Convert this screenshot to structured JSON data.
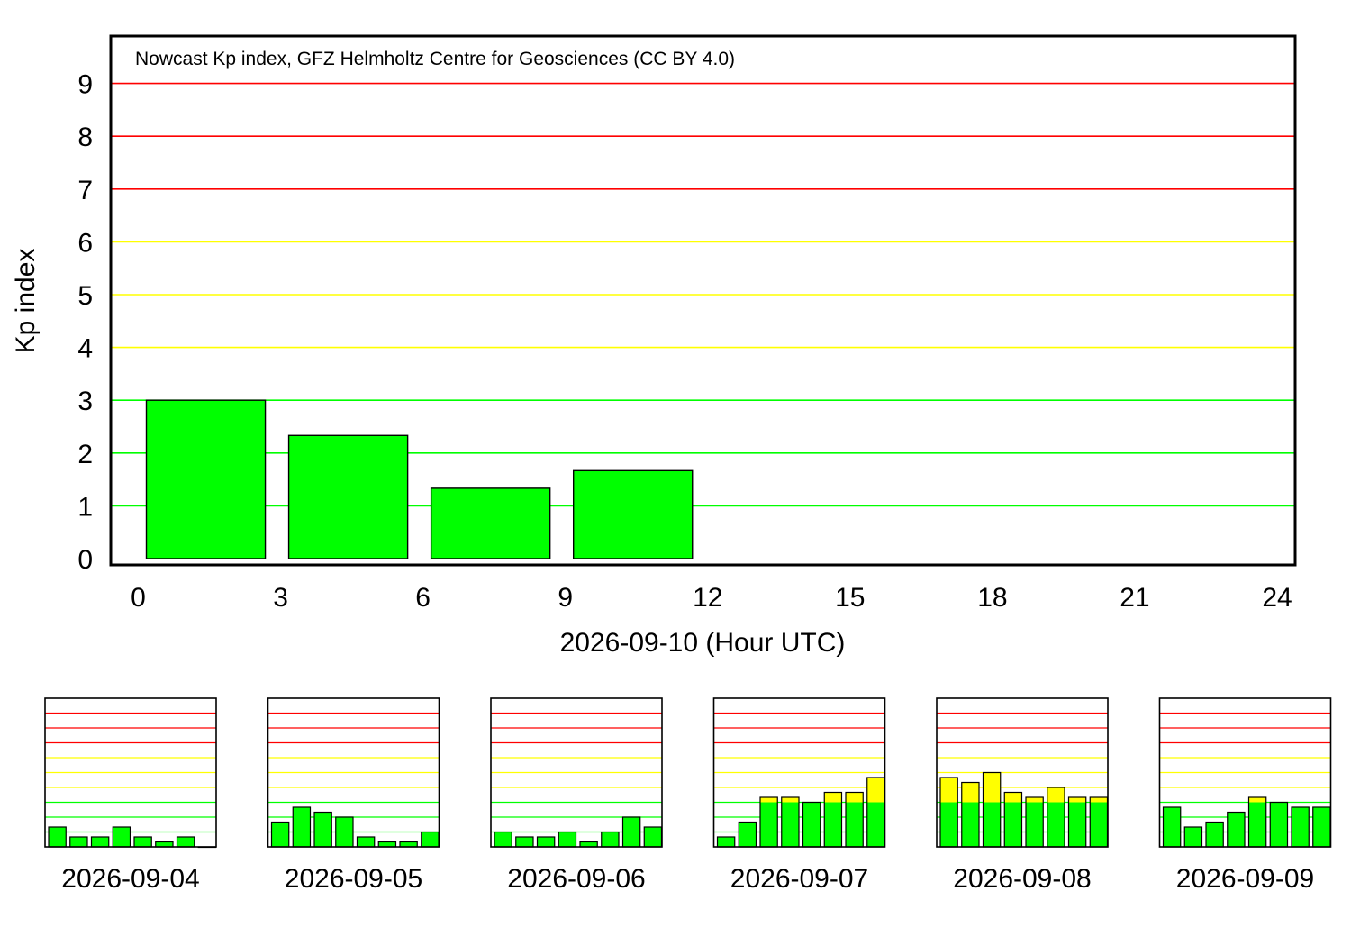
{
  "colors": {
    "bar_green": "#00ff00",
    "bar_yellow": "#ffff00",
    "grid_green": "#00ff00",
    "grid_yellow": "#ffff00",
    "grid_red": "#ff0000",
    "frame": "#000000"
  },
  "chart_data": [
    {
      "type": "bar",
      "annotation": "Nowcast Kp index, GFZ Helmholtz Centre for Geosciences (CC BY 4.0)",
      "ylabel": "Kp index",
      "xlabel": "2026-09-10 (Hour UTC)",
      "xlim": [
        0,
        24
      ],
      "ylim": [
        0,
        9
      ],
      "yticks": [
        0,
        1,
        2,
        3,
        4,
        5,
        6,
        7,
        8,
        9
      ],
      "xticks": [
        0,
        3,
        6,
        9,
        12,
        15,
        18,
        21,
        24
      ],
      "grid": "horizontal lines at each Kp level; green 1-3, yellow 4-6, red 7-9",
      "bars": [
        {
          "start_hour": 0,
          "end_hour": 3,
          "value": 3.0
        },
        {
          "start_hour": 3,
          "end_hour": 6,
          "value": 2.333
        },
        {
          "start_hour": 6,
          "end_hour": 9,
          "value": 1.333
        },
        {
          "start_hour": 9,
          "end_hour": 12,
          "value": 1.667
        }
      ]
    },
    {
      "type": "bar",
      "xlabel": "2026-09-04",
      "ylim": [
        0,
        9
      ],
      "values": [
        1.333,
        0.667,
        0.667,
        1.333,
        0.667,
        0.333,
        0.667,
        0.0
      ]
    },
    {
      "type": "bar",
      "xlabel": "2026-09-05",
      "ylim": [
        0,
        9
      ],
      "values": [
        1.667,
        2.667,
        2.333,
        2.0,
        0.667,
        0.333,
        0.333,
        1.0
      ]
    },
    {
      "type": "bar",
      "xlabel": "2026-09-06",
      "ylim": [
        0,
        9
      ],
      "values": [
        1.0,
        0.667,
        0.667,
        1.0,
        0.333,
        1.0,
        2.0,
        1.333
      ]
    },
    {
      "type": "bar",
      "xlabel": "2026-09-07",
      "ylim": [
        0,
        9
      ],
      "values": [
        0.667,
        1.667,
        3.333,
        3.333,
        3.0,
        3.667,
        3.667,
        4.667
      ]
    },
    {
      "type": "bar",
      "xlabel": "2026-09-08",
      "ylim": [
        0,
        9
      ],
      "values": [
        4.667,
        4.333,
        5.0,
        3.667,
        3.333,
        4.0,
        3.333,
        3.333
      ]
    },
    {
      "type": "bar",
      "xlabel": "2026-09-09",
      "ylim": [
        0,
        9
      ],
      "values": [
        2.667,
        1.333,
        1.667,
        2.333,
        3.333,
        3.0,
        2.667,
        2.667
      ]
    }
  ]
}
